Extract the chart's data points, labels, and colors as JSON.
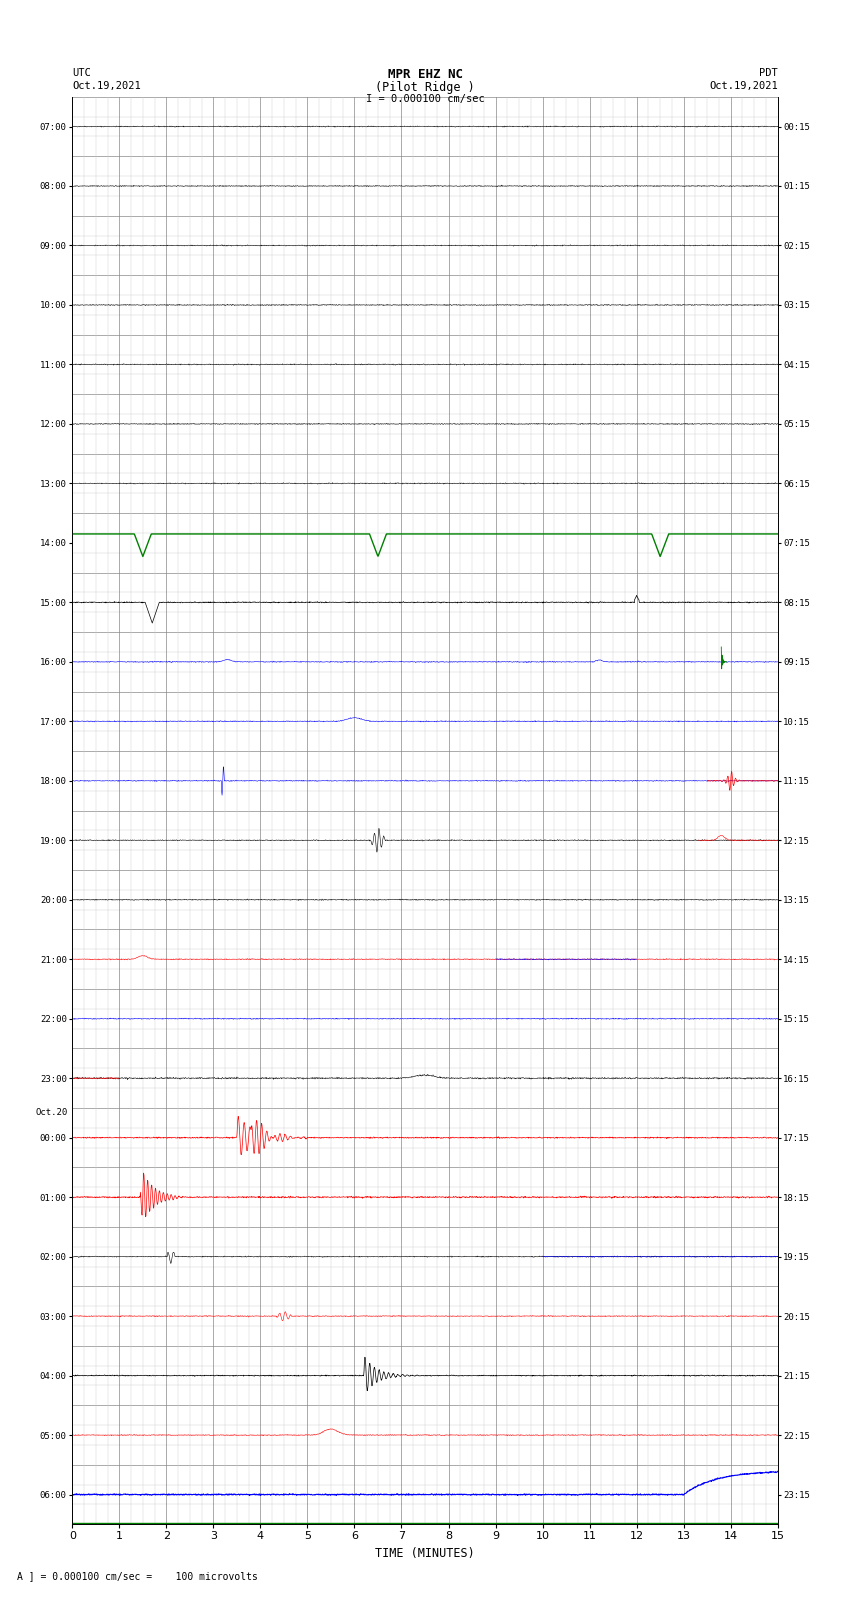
{
  "title_line1": "MPR EHZ NC",
  "title_line2": "(Pilot Ridge )",
  "title_line3": "I = 0.000100 cm/sec",
  "label_utc": "UTC",
  "label_utc_date": "Oct.19,2021",
  "label_pdt": "PDT",
  "label_pdt_date": "Oct.19,2021",
  "label_oct20": "Oct.20\n00:00",
  "xlabel": "TIME (MINUTES)",
  "footer": "A ] = 0.000100 cm/sec =    100 microvolts",
  "utc_times": [
    "07:00",
    "08:00",
    "09:00",
    "10:00",
    "11:00",
    "12:00",
    "13:00",
    "14:00",
    "15:00",
    "16:00",
    "17:00",
    "18:00",
    "19:00",
    "20:00",
    "21:00",
    "22:00",
    "23:00",
    "00:00",
    "01:00",
    "02:00",
    "03:00",
    "04:00",
    "05:00",
    "06:00"
  ],
  "pdt_times": [
    "00:15",
    "01:15",
    "02:15",
    "03:15",
    "04:15",
    "05:15",
    "06:15",
    "07:15",
    "08:15",
    "09:15",
    "10:15",
    "11:15",
    "12:15",
    "13:15",
    "14:15",
    "15:15",
    "16:15",
    "17:15",
    "18:15",
    "19:15",
    "20:15",
    "21:15",
    "22:15",
    "23:15"
  ],
  "n_rows": 24,
  "x_min": 0,
  "x_max": 15,
  "x_ticks": [
    0,
    1,
    2,
    3,
    4,
    5,
    6,
    7,
    8,
    9,
    10,
    11,
    12,
    13,
    14,
    15
  ],
  "background_color": "#ffffff",
  "grid_color": "#888888",
  "minor_grid_color": "#cccccc",
  "seed": 42,
  "dpi": 100
}
